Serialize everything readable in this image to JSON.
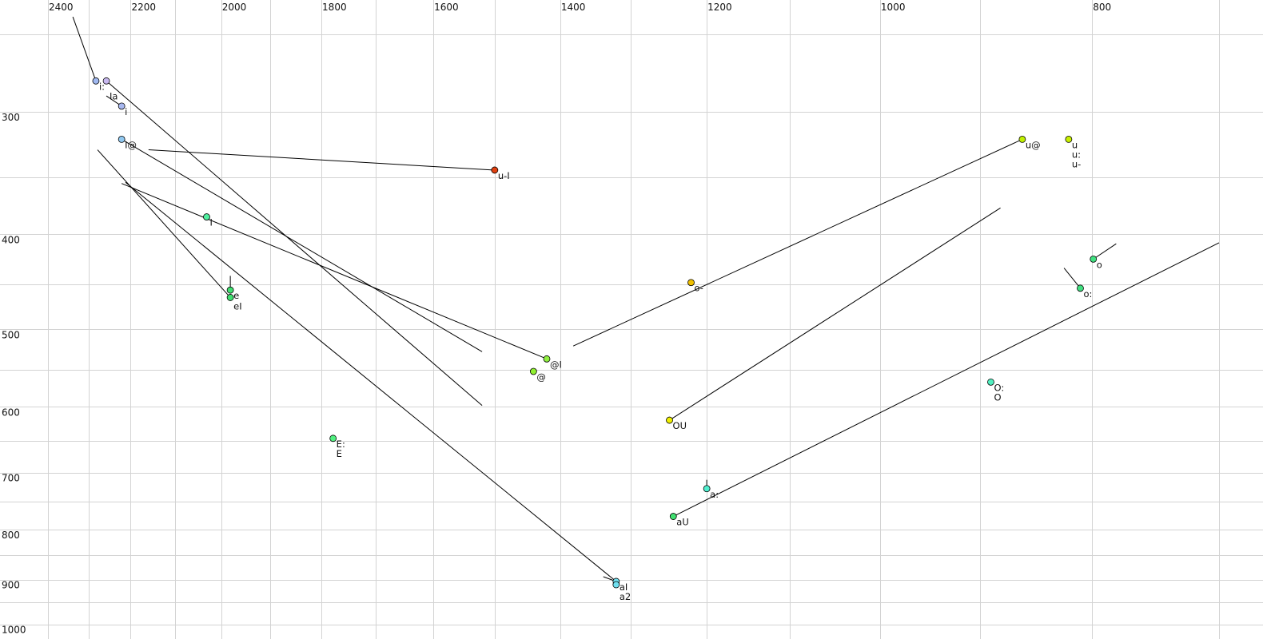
{
  "chart_data": {
    "type": "scatter",
    "title": "",
    "xlabel": "",
    "ylabel": "",
    "x_scale": "log",
    "y_scale": "log",
    "x_reversed": true,
    "xlim": [
      2400,
      700
    ],
    "ylim": [
      250,
      1000
    ],
    "grid": true,
    "x_grid_step": 100,
    "y_grid_step": 50,
    "x_ticks": [
      2400,
      2200,
      2000,
      1800,
      1600,
      1400,
      1200,
      1000,
      800
    ],
    "y_ticks": [
      300,
      400,
      500,
      600,
      700,
      800,
      900,
      1000
    ],
    "points": [
      {
        "labels": [
          "i:"
        ],
        "f2": 2282,
        "f1": 279,
        "color": "#a0b8f0"
      },
      {
        "labels": [
          "Ia"
        ],
        "f2": 2257,
        "f1": 279,
        "color": "#c8b8f0"
      },
      {
        "labels": [
          "i"
        ],
        "f2": 2221,
        "f1": 296,
        "color": "#a8b8f0"
      },
      {
        "labels": [
          "I@"
        ],
        "f2": 2221,
        "f1": 320,
        "color": "#90c8f0"
      },
      {
        "labels": [
          "u-I"
        ],
        "f2": 1500,
        "f1": 344,
        "color": "#e04010"
      },
      {
        "labels": [
          "I"
        ],
        "f2": 2031,
        "f1": 384,
        "color": "#50f0a0"
      },
      {
        "labels": [
          "e"
        ],
        "f2": 1981,
        "f1": 456,
        "color": "#40e070"
      },
      {
        "labels": [
          "eI"
        ],
        "f2": 1981,
        "f1": 464,
        "color": "#40e070"
      },
      {
        "labels": [
          "@I"
        ],
        "f2": 1420,
        "f1": 536,
        "color": "#90f040"
      },
      {
        "labels": [
          "@"
        ],
        "f2": 1440,
        "f1": 552,
        "color": "#90f030"
      },
      {
        "labels": [
          "E:",
          "E"
        ],
        "f2": 1778,
        "f1": 646,
        "color": "#50f080"
      },
      {
        "labels": [
          "o-"
        ],
        "f2": 1220,
        "f1": 448,
        "color": "#f0c000"
      },
      {
        "labels": [
          "u@"
        ],
        "f2": 861,
        "f1": 320,
        "color": "#c0f000"
      },
      {
        "labels": [
          "u",
          "u:",
          "u-"
        ],
        "f2": 820,
        "f1": 320,
        "color": "#c8f000"
      },
      {
        "labels": [
          "o"
        ],
        "f2": 799,
        "f1": 424,
        "color": "#40e080"
      },
      {
        "labels": [
          "o:"
        ],
        "f2": 810,
        "f1": 454,
        "color": "#40e080"
      },
      {
        "labels": [
          "O:",
          "O"
        ],
        "f2": 890,
        "f1": 566,
        "color": "#50f0c0"
      },
      {
        "labels": [
          "OU"
        ],
        "f2": 1248,
        "f1": 619,
        "color": "#f0f000"
      },
      {
        "labels": [
          "a:"
        ],
        "f2": 1200,
        "f1": 727,
        "color": "#50f0d0"
      },
      {
        "labels": [
          "aU"
        ],
        "f2": 1243,
        "f1": 776,
        "color": "#40e070"
      },
      {
        "labels": [
          "aI"
        ],
        "f2": 1320,
        "f1": 904,
        "color": "#70e0f0"
      },
      {
        "labels": [
          "a2"
        ],
        "f2": 1320,
        "f1": 911,
        "color": "#70e0f0"
      }
    ],
    "trajectories": [
      {
        "from": [
          2338,
          240
        ],
        "to": [
          2282,
          279
        ]
      },
      {
        "from": [
          2257,
          279
        ],
        "to": [
          1520,
          598
        ]
      },
      {
        "from": [
          2257,
          289
        ],
        "to": [
          2221,
          296
        ]
      },
      {
        "from": [
          2159,
          328
        ],
        "to": [
          1500,
          344
        ]
      },
      {
        "from": [
          2221,
          320
        ],
        "to": [
          1520,
          527
        ]
      },
      {
        "from": [
          2278,
          328
        ],
        "to": [
          1981,
          464
        ]
      },
      {
        "from": [
          2221,
          355
        ],
        "to": [
          1420,
          536
        ]
      },
      {
        "from": [
          1981,
          441
        ],
        "to": [
          1981,
          456
        ]
      },
      {
        "from": [
          2212,
          354
        ],
        "to": [
          1320,
          904
        ]
      },
      {
        "from": [
          1381,
          520
        ],
        "to": [
          861,
          320
        ]
      },
      {
        "from": [
          1248,
          619
        ],
        "to": [
          881,
          376
        ]
      },
      {
        "from": [
          1243,
          776
        ],
        "to": [
          700,
          408
        ]
      },
      {
        "from": [
          1200,
          712
        ],
        "to": [
          1200,
          727
        ]
      },
      {
        "from": [
          799,
          424
        ],
        "to": [
          780,
          409
        ]
      },
      {
        "from": [
          824,
          433
        ],
        "to": [
          810,
          454
        ]
      },
      {
        "from": [
          1338,
          894
        ],
        "to": [
          1320,
          904
        ]
      }
    ]
  }
}
